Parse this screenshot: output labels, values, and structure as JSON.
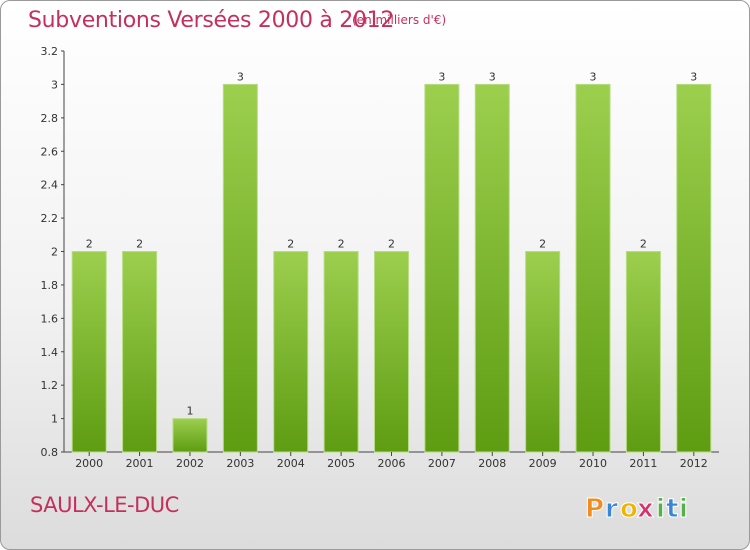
{
  "header": {
    "title": "Subventions Versées 2000 à 2012",
    "unit": "(en milliers d'€)"
  },
  "footer": {
    "commune": "SAULX-LE-DUC",
    "brand": "Proxiti",
    "brand_letters": [
      "P",
      "r",
      "o",
      "x",
      "i",
      "t",
      "i"
    ],
    "brand_colors": [
      "#f28c1e",
      "#3a86d6",
      "#f0b400",
      "#d6336c",
      "#55b047",
      "#3a86d6",
      "#55b047"
    ]
  },
  "chart_data": {
    "type": "bar",
    "title": "Subventions Versées 2000 à 2012",
    "subtitle": "(en milliers d'€)",
    "categories": [
      "2000",
      "2001",
      "2002",
      "2003",
      "2004",
      "2005",
      "2006",
      "2007",
      "2008",
      "2009",
      "2010",
      "2011",
      "2012"
    ],
    "values": [
      2,
      2,
      1,
      3,
      2,
      2,
      2,
      3,
      3,
      2,
      3,
      2,
      3
    ],
    "value_labels": [
      "2",
      "2",
      "1",
      "3",
      "2",
      "2",
      "2",
      "3",
      "3",
      "2",
      "3",
      "2",
      "3"
    ],
    "y_ticks": [
      "0.8",
      "1",
      "1.2",
      "1.4",
      "1.6",
      "1.8",
      "2",
      "2.2",
      "2.4",
      "2.6",
      "2.8",
      "3",
      "3.2"
    ],
    "y_tick_values": [
      0.8,
      1.0,
      1.2,
      1.4,
      1.6,
      1.8,
      2.0,
      2.2,
      2.4,
      2.6,
      2.8,
      3.0,
      3.2
    ],
    "ylim": [
      0.8,
      3.2
    ],
    "grid": false,
    "bar_color_top": "#9ccf4e",
    "bar_color_bottom": "#5e9c12"
  }
}
